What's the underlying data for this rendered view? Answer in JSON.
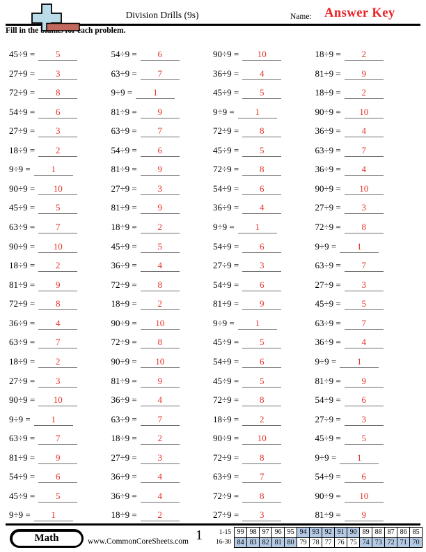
{
  "colors": {
    "answer_red": "#e5332a",
    "answer_key_red": "#ed2025",
    "score_shade_blue": "#b5cbe5",
    "logo_plus_blue": "#b9dce8",
    "logo_bar_red": "#c2685c",
    "blank_line_gray": "#6e6e6e"
  },
  "header": {
    "title": "Division Drills (9s)",
    "name_label": "Name:",
    "answer_key": "Answer Key",
    "instructions": "Fill in the blanks for each problem."
  },
  "problems": {
    "columns": [
      {
        "items": [
          {
            "q": "45÷9 =",
            "a": "5"
          },
          {
            "q": "27÷9 =",
            "a": "3"
          },
          {
            "q": "72÷9 =",
            "a": "8"
          },
          {
            "q": "54÷9 =",
            "a": "6"
          },
          {
            "q": "27÷9 =",
            "a": "3"
          },
          {
            "q": "18÷9 =",
            "a": "2"
          },
          {
            "q": "9÷9 =",
            "a": "1"
          },
          {
            "q": "90÷9 =",
            "a": "10"
          },
          {
            "q": "45÷9 =",
            "a": "5"
          },
          {
            "q": "63÷9 =",
            "a": "7"
          },
          {
            "q": "90÷9 =",
            "a": "10"
          },
          {
            "q": "18÷9 =",
            "a": "2"
          },
          {
            "q": "81÷9 =",
            "a": "9"
          },
          {
            "q": "72÷9 =",
            "a": "8"
          },
          {
            "q": "36÷9 =",
            "a": "4"
          },
          {
            "q": "63÷9 =",
            "a": "7"
          },
          {
            "q": "18÷9 =",
            "a": "2"
          },
          {
            "q": "27÷9 =",
            "a": "3"
          },
          {
            "q": "90÷9 =",
            "a": "10"
          },
          {
            "q": "9÷9 =",
            "a": "1"
          },
          {
            "q": "63÷9 =",
            "a": "7"
          },
          {
            "q": "81÷9 =",
            "a": "9"
          },
          {
            "q": "54÷9 =",
            "a": "6"
          },
          {
            "q": "45÷9 =",
            "a": "5"
          },
          {
            "q": "9÷9 =",
            "a": "1"
          }
        ]
      },
      {
        "items": [
          {
            "q": "54÷9 =",
            "a": "6"
          },
          {
            "q": "63÷9 =",
            "a": "7"
          },
          {
            "q": "9÷9 =",
            "a": "1"
          },
          {
            "q": "81÷9 =",
            "a": "9"
          },
          {
            "q": "63÷9 =",
            "a": "7"
          },
          {
            "q": "54÷9 =",
            "a": "6"
          },
          {
            "q": "81÷9 =",
            "a": "9"
          },
          {
            "q": "27÷9 =",
            "a": "3"
          },
          {
            "q": "81÷9 =",
            "a": "9"
          },
          {
            "q": "18÷9 =",
            "a": "2"
          },
          {
            "q": "45÷9 =",
            "a": "5"
          },
          {
            "q": "36÷9 =",
            "a": "4"
          },
          {
            "q": "72÷9 =",
            "a": "8"
          },
          {
            "q": "18÷9 =",
            "a": "2"
          },
          {
            "q": "90÷9 =",
            "a": "10"
          },
          {
            "q": "72÷9 =",
            "a": "8"
          },
          {
            "q": "90÷9 =",
            "a": "10"
          },
          {
            "q": "81÷9 =",
            "a": "9"
          },
          {
            "q": "36÷9 =",
            "a": "4"
          },
          {
            "q": "63÷9 =",
            "a": "7"
          },
          {
            "q": "18÷9 =",
            "a": "2"
          },
          {
            "q": "27÷9 =",
            "a": "3"
          },
          {
            "q": "36÷9 =",
            "a": "4"
          },
          {
            "q": "36÷9 =",
            "a": "4"
          },
          {
            "q": "18÷9 =",
            "a": "2"
          }
        ]
      },
      {
        "items": [
          {
            "q": "90÷9 =",
            "a": "10"
          },
          {
            "q": "36÷9 =",
            "a": "4"
          },
          {
            "q": "45÷9 =",
            "a": "5"
          },
          {
            "q": "9÷9 =",
            "a": "1"
          },
          {
            "q": "72÷9 =",
            "a": "8"
          },
          {
            "q": "45÷9 =",
            "a": "5"
          },
          {
            "q": "72÷9 =",
            "a": "8"
          },
          {
            "q": "54÷9 =",
            "a": "6"
          },
          {
            "q": "36÷9 =",
            "a": "4"
          },
          {
            "q": "9÷9 =",
            "a": "1"
          },
          {
            "q": "54÷9 =",
            "a": "6"
          },
          {
            "q": "27÷9 =",
            "a": "3"
          },
          {
            "q": "54÷9 =",
            "a": "6"
          },
          {
            "q": "81÷9 =",
            "a": "9"
          },
          {
            "q": "9÷9 =",
            "a": "1"
          },
          {
            "q": "45÷9 =",
            "a": "5"
          },
          {
            "q": "54÷9 =",
            "a": "6"
          },
          {
            "q": "45÷9 =",
            "a": "5"
          },
          {
            "q": "72÷9 =",
            "a": "8"
          },
          {
            "q": "18÷9 =",
            "a": "2"
          },
          {
            "q": "90÷9 =",
            "a": "10"
          },
          {
            "q": "72÷9 =",
            "a": "8"
          },
          {
            "q": "63÷9 =",
            "a": "7"
          },
          {
            "q": "72÷9 =",
            "a": "8"
          },
          {
            "q": "27÷9 =",
            "a": "3"
          }
        ]
      },
      {
        "items": [
          {
            "q": "18÷9 =",
            "a": "2"
          },
          {
            "q": "81÷9 =",
            "a": "9"
          },
          {
            "q": "18÷9 =",
            "a": "2"
          },
          {
            "q": "90÷9 =",
            "a": "10"
          },
          {
            "q": "36÷9 =",
            "a": "4"
          },
          {
            "q": "63÷9 =",
            "a": "7"
          },
          {
            "q": "36÷9 =",
            "a": "4"
          },
          {
            "q": "90÷9 =",
            "a": "10"
          },
          {
            "q": "27÷9 =",
            "a": "3"
          },
          {
            "q": "72÷9 =",
            "a": "8"
          },
          {
            "q": "9÷9 =",
            "a": "1"
          },
          {
            "q": "63÷9 =",
            "a": "7"
          },
          {
            "q": "27÷9 =",
            "a": "3"
          },
          {
            "q": "45÷9 =",
            "a": "5"
          },
          {
            "q": "63÷9 =",
            "a": "7"
          },
          {
            "q": "36÷9 =",
            "a": "4"
          },
          {
            "q": "9÷9 =",
            "a": "1"
          },
          {
            "q": "81÷9 =",
            "a": "9"
          },
          {
            "q": "54÷9 =",
            "a": "6"
          },
          {
            "q": "27÷9 =",
            "a": "3"
          },
          {
            "q": "45÷9 =",
            "a": "5"
          },
          {
            "q": "9÷9 =",
            "a": "1"
          },
          {
            "q": "54÷9 =",
            "a": "6"
          },
          {
            "q": "90÷9 =",
            "a": "10"
          },
          {
            "q": "81÷9 =",
            "a": "9"
          }
        ]
      }
    ]
  },
  "footer": {
    "subject": "Math",
    "website": "www.CommonCoreSheets.com",
    "page": "1",
    "score_table": {
      "row1_label": "1-15",
      "row1_values": [
        "99",
        "98",
        "97",
        "96",
        "95",
        "94",
        "93",
        "92",
        "91",
        "90",
        "89",
        "88",
        "87",
        "86",
        "85"
      ],
      "row1_shaded": [
        5,
        6,
        7,
        8,
        9
      ],
      "row2_label": "16-30",
      "row2_values": [
        "84",
        "83",
        "82",
        "81",
        "80",
        "79",
        "78",
        "77",
        "76",
        "75",
        "74",
        "73",
        "72",
        "71",
        "70"
      ],
      "row2_shaded": [
        0,
        1,
        2,
        3,
        4,
        10,
        11,
        12,
        13,
        14
      ]
    }
  }
}
